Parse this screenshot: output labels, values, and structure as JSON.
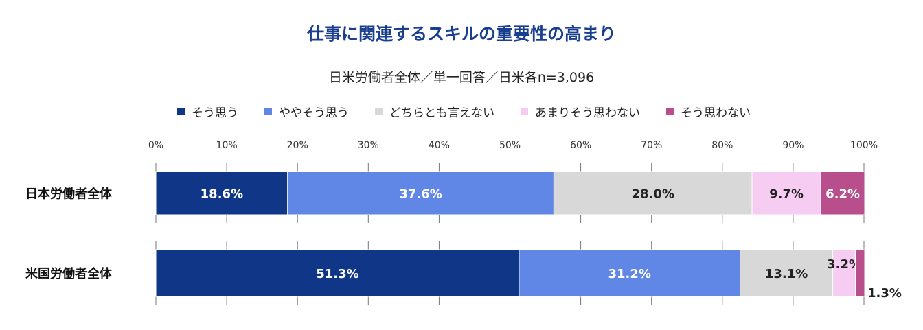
{
  "header": {
    "title": "仕事に関連するスキルの重要性の高まり",
    "subtitle": "日米労働者全体／単一回答／日米各n=3,096"
  },
  "chart_data": {
    "type": "bar",
    "orientation": "horizontal",
    "stacked": true,
    "title": "仕事に関連するスキルの重要性の高まり",
    "subtitle": "日米労働者全体／単一回答／日米各n=3,096",
    "xlim": [
      0,
      100
    ],
    "x_ticks": [
      "0%",
      "10%",
      "20%",
      "30%",
      "40%",
      "50%",
      "60%",
      "70%",
      "80%",
      "90%",
      "100%"
    ],
    "categories": [
      "日本労働者全体",
      "米国労働者全体"
    ],
    "series": [
      {
        "name": "そう思う",
        "values": [
          18.6,
          51.3
        ],
        "labels": [
          "18.6%",
          "51.3%"
        ],
        "color": "#0f3687",
        "text_color": "#ffffff"
      },
      {
        "name": "ややそう思う",
        "values": [
          37.6,
          31.2
        ],
        "labels": [
          "37.6%",
          "31.2%"
        ],
        "color": "#6187e6",
        "text_color": "#ffffff"
      },
      {
        "name": "どちらとも言えない",
        "values": [
          28.0,
          13.1
        ],
        "labels": [
          "28.0%",
          "13.1%"
        ],
        "color": "#d8d8d8",
        "text_color": "#222222"
      },
      {
        "name": "あまりそう思わない",
        "values": [
          9.7,
          3.2
        ],
        "labels": [
          "9.7%",
          "3.2%"
        ],
        "color": "#f7ccf3",
        "text_color": "#222222"
      },
      {
        "name": "そう思わない",
        "values": [
          6.2,
          1.3
        ],
        "labels": [
          "6.2%",
          "1.3%"
        ],
        "color": "#b84e8c",
        "text_color": "#ffffff"
      }
    ],
    "legend_position": "top",
    "grid": false
  }
}
